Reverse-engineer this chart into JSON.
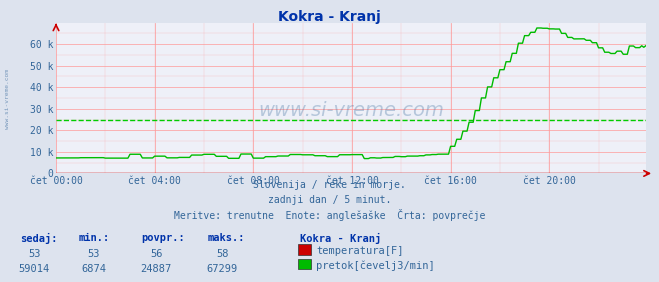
{
  "title": "Kokra - Kranj",
  "title_color": "#0033aa",
  "bg_color": "#dde3ee",
  "plot_bg_color": "#eef0f8",
  "grid_color": "#ff9999",
  "dashed_avg_color": "#00cc00",
  "temp_color": "#cc0000",
  "flow_color": "#00bb00",
  "axis_label_color": "#336699",
  "text_color": "#336699",
  "watermark_color": "#336699",
  "sidebar_color": "#336699",
  "xlabel_ticks": [
    "čet 00:00",
    "čet 04:00",
    "čet 08:00",
    "čet 12:00",
    "čet 16:00",
    "čet 20:00"
  ],
  "ylabel_ticks": [
    "0",
    "10 k",
    "20 k",
    "30 k",
    "40 k",
    "50 k",
    "60 k"
  ],
  "ylabel_values": [
    0,
    10000,
    20000,
    30000,
    40000,
    50000,
    60000
  ],
  "ylim": [
    0,
    70000
  ],
  "n_points": 288,
  "avg_flow": 24887,
  "subtitle1": "Slovenija / reke in morje.",
  "subtitle2": "zadnji dan / 5 minut.",
  "subtitle3": "Meritve: trenutne  Enote: anglešaške  Črta: povprečje",
  "table_headers": [
    "sedaj:",
    "min.:",
    "povpr.:",
    "maks.:"
  ],
  "row1": [
    "53",
    "53",
    "56",
    "58"
  ],
  "row2": [
    "59014",
    "6874",
    "24887",
    "67299"
  ],
  "legend_title": "Kokra - Kranj",
  "legend1": "temperatura[F]",
  "legend2": "pretok[čevelj3/min]",
  "watermark": "www.si-vreme.com",
  "sidebar_text": "www.si-vreme.com"
}
